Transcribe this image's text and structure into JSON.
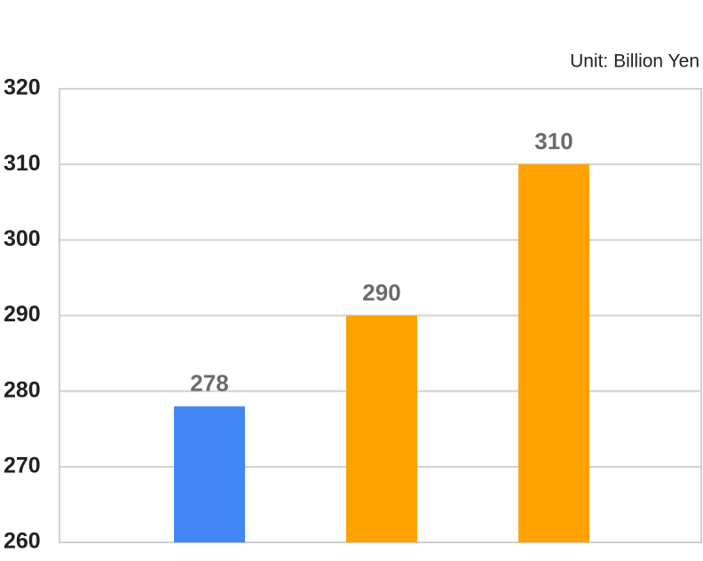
{
  "chart_data": {
    "type": "bar",
    "unit_label": "Unit: Billion Yen",
    "categories": [
      null,
      null,
      null
    ],
    "values": [
      278,
      290,
      310
    ],
    "colors": [
      "#4287f5",
      "#ffa200",
      "#ffa200"
    ],
    "ylim": [
      260,
      320
    ],
    "yticks": [
      260,
      270,
      280,
      290,
      300,
      310,
      320
    ],
    "grid": true
  }
}
